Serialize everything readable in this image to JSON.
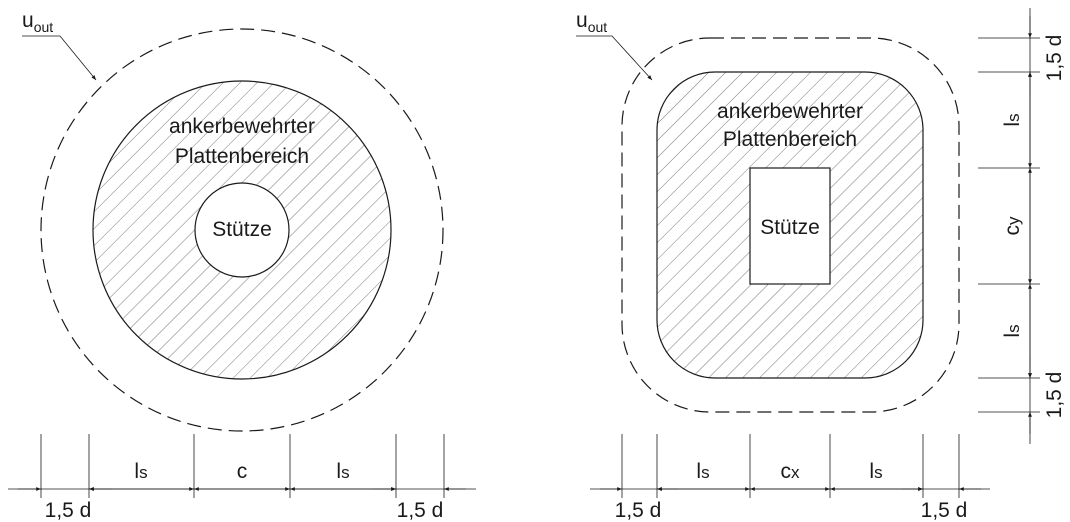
{
  "colors": {
    "stroke": "#1a1a1a",
    "hatch": "#555555",
    "background": "#ffffff"
  },
  "left_figure": {
    "perimeter_label": "u",
    "perimeter_sub": "out",
    "region_label_line1": "ankerbewehrter",
    "region_label_line2": "Plattenbereich",
    "column_label": "Stütze",
    "dims": {
      "d1": "1,5 d",
      "ls1": "l",
      "ls1_sub": "s",
      "c": "c",
      "ls2": "l",
      "ls2_sub": "s",
      "d2": "1,5 d"
    }
  },
  "right_figure": {
    "perimeter_label": "u",
    "perimeter_sub": "out",
    "region_label_line1": "ankerbewehrter",
    "region_label_line2": "Plattenbereich",
    "column_label": "Stütze",
    "dims_h": {
      "d1": "1,5 d",
      "ls1": "l",
      "ls1_sub": "s",
      "cx": "c",
      "cx_sub": "x",
      "ls2": "l",
      "ls2_sub": "s",
      "d2": "1,5 d"
    },
    "dims_v": {
      "d1": "1,5 d",
      "ls1": "l",
      "ls1_sub": "s",
      "cy": "c",
      "cy_sub": "y",
      "ls2": "l",
      "ls2_sub": "s",
      "d2": "1,5 d"
    }
  }
}
